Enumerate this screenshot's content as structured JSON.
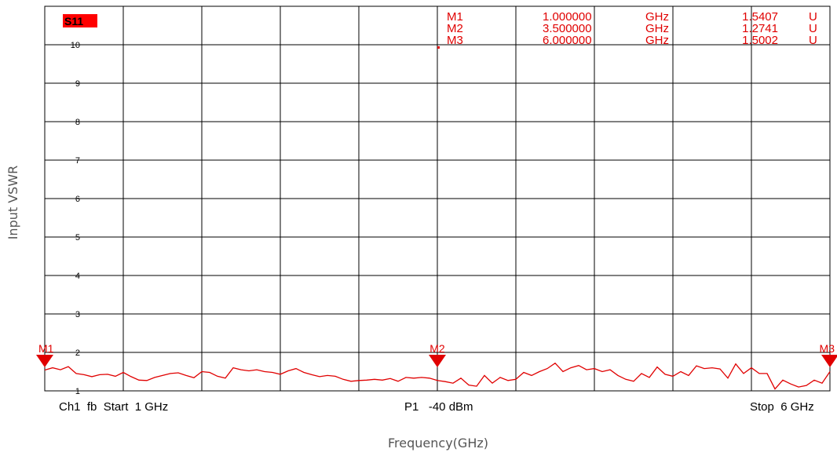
{
  "chart_data": {
    "type": "line",
    "trace_label": "S11",
    "xlabel": "Frequency(GHz)",
    "ylabel": "Input VSWR",
    "xlim": [
      1,
      6
    ],
    "ylim": [
      1,
      10
    ],
    "y_ticks": [
      "1",
      "2",
      "3",
      "4",
      "5",
      "6",
      "7",
      "8",
      "9",
      "10"
    ],
    "grid": true,
    "footer": {
      "start": "Ch1  fb  Start  1 GHz",
      "power": "P1   -40 dBm",
      "stop": "Stop  6 GHz"
    },
    "markers": [
      {
        "name": "M1",
        "freq": "1.000000",
        "freq_unit": "GHz",
        "value": "1.5407",
        "value_unit": "U",
        "x": 1.0,
        "y": 1.5407
      },
      {
        "name": "M2",
        "freq": "3.500000",
        "freq_unit": "GHz",
        "value": "1.2741",
        "value_unit": "U",
        "x": 3.5,
        "y": 1.2741
      },
      {
        "name": "M3",
        "freq": "6.000000",
        "freq_unit": "GHz",
        "value": "1.5002",
        "value_unit": "U",
        "x": 6.0,
        "y": 1.5002
      }
    ],
    "series": [
      {
        "color": "#e00000",
        "x": [
          1.0,
          1.05,
          1.1,
          1.15,
          1.2,
          1.25,
          1.3,
          1.35,
          1.4,
          1.45,
          1.5,
          1.55,
          1.6,
          1.65,
          1.7,
          1.75,
          1.8,
          1.85,
          1.9,
          1.95,
          2.0,
          2.05,
          2.1,
          2.15,
          2.2,
          2.25,
          2.3,
          2.35,
          2.4,
          2.45,
          2.5,
          2.55,
          2.6,
          2.65,
          2.7,
          2.75,
          2.8,
          2.85,
          2.9,
          2.95,
          3.0,
          3.05,
          3.1,
          3.15,
          3.2,
          3.25,
          3.3,
          3.35,
          3.4,
          3.45,
          3.5,
          3.55,
          3.6,
          3.65,
          3.7,
          3.75,
          3.8,
          3.85,
          3.9,
          3.95,
          4.0,
          4.05,
          4.1,
          4.15,
          4.2,
          4.25,
          4.3,
          4.35,
          4.4,
          4.45,
          4.5,
          4.55,
          4.6,
          4.65,
          4.7,
          4.75,
          4.8,
          4.85,
          4.9,
          4.95,
          5.0,
          5.05,
          5.1,
          5.15,
          5.2,
          5.25,
          5.3,
          5.35,
          5.4,
          5.45,
          5.5,
          5.55,
          5.6,
          5.65,
          5.7,
          5.75,
          5.8,
          5.85,
          5.9,
          5.95,
          6.0
        ],
        "y": [
          1.54,
          1.6,
          1.55,
          1.63,
          1.45,
          1.42,
          1.37,
          1.42,
          1.43,
          1.38,
          1.48,
          1.37,
          1.28,
          1.27,
          1.35,
          1.4,
          1.45,
          1.47,
          1.4,
          1.34,
          1.5,
          1.48,
          1.38,
          1.33,
          1.6,
          1.55,
          1.52,
          1.55,
          1.5,
          1.48,
          1.43,
          1.52,
          1.58,
          1.48,
          1.42,
          1.37,
          1.4,
          1.38,
          1.3,
          1.25,
          1.27,
          1.28,
          1.3,
          1.28,
          1.32,
          1.25,
          1.35,
          1.33,
          1.35,
          1.33,
          1.27,
          1.24,
          1.2,
          1.33,
          1.15,
          1.12,
          1.4,
          1.2,
          1.35,
          1.27,
          1.3,
          1.48,
          1.4,
          1.5,
          1.58,
          1.72,
          1.5,
          1.6,
          1.66,
          1.55,
          1.58,
          1.5,
          1.55,
          1.4,
          1.3,
          1.25,
          1.45,
          1.35,
          1.62,
          1.43,
          1.38,
          1.5,
          1.4,
          1.65,
          1.58,
          1.6,
          1.57,
          1.33,
          1.7,
          1.45,
          1.6,
          1.45,
          1.45,
          1.05,
          1.28,
          1.18,
          1.1,
          1.14,
          1.28,
          1.2,
          1.5
        ]
      }
    ]
  }
}
